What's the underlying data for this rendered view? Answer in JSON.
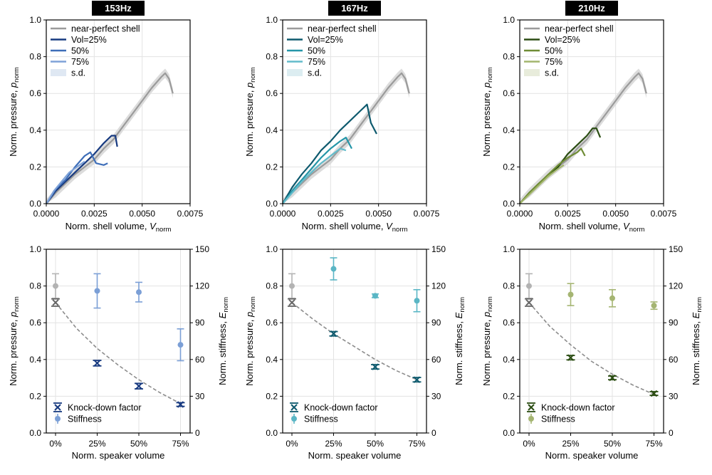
{
  "colors": {
    "grey_curve": "#9b9b9b",
    "grey_band": "#dcdcdc",
    "grid": "#e3e3e3",
    "fit_line": "#8c8c8c"
  },
  "labels": {
    "x_top": "Norm. shell volume, ",
    "x_top_sym": "V",
    "x_top_sub": "norm",
    "y_top": "Norm. pressure, ",
    "y_top_sym": "p",
    "y_top_sub": "norm",
    "x_bottom": "Norm. speaker volume",
    "y_right": "Norm. stiffness, ",
    "y_right_sym": "E",
    "y_right_sub": "norm"
  },
  "panels": [
    {
      "title": "153Hz",
      "colors": {
        "v25": "#173a80",
        "v50": "#3e6eb8",
        "v75": "#7ea2d8",
        "band": "#dfe8f3",
        "kd": "#173a80",
        "st": "#7b9fd6"
      },
      "legend_top": [
        "near-perfect shell",
        "Vol=25%",
        "50%",
        "75%",
        "s.d."
      ],
      "legend_bottom": [
        "Knock-down factor",
        "Stiffness"
      ]
    },
    {
      "title": "167Hz",
      "colors": {
        "v25": "#0e5a6e",
        "v50": "#2596a8",
        "v75": "#62bccb",
        "band": "#dcedf1",
        "kd": "#0e5a6e",
        "st": "#5ab6c5"
      },
      "legend_top": [
        "near-perfect shell",
        "Vol=25%",
        "50%",
        "75%",
        "s.d."
      ],
      "legend_bottom": [
        "Knock-down factor",
        "Stiffness"
      ]
    },
    {
      "title": "210Hz",
      "colors": {
        "v25": "#2b4d13",
        "v50": "#6f8c35",
        "v75": "#a3b66d",
        "band": "#e8ecdb",
        "kd": "#2b4d13",
        "st": "#a5b572"
      },
      "legend_top": [
        "near-perfect shell",
        "Vol=25%",
        "50%",
        "75%",
        "s.d."
      ],
      "legend_bottom": [
        "Knock-down factor",
        "Stiffness"
      ]
    }
  ],
  "chart_data": [
    {
      "type": "line",
      "title": "153Hz",
      "xlabel": "Norm. shell volume, V_norm",
      "ylabel": "Norm. pressure, p_norm",
      "xlim": [
        0,
        0.0075
      ],
      "ylim": [
        0,
        1.0
      ],
      "xticks": [
        "0.0000",
        "0.0025",
        "0.0050",
        "0.0075"
      ],
      "yticks": [
        "0.0",
        "0.2",
        "0.4",
        "0.6",
        "0.8",
        "1.0"
      ],
      "grid": true,
      "legend": "top-left",
      "series": [
        {
          "name": "near-perfect shell",
          "x": [
            0,
            0.0005,
            0.001,
            0.0015,
            0.002,
            0.0025,
            0.003,
            0.0035,
            0.004,
            0.0045,
            0.005,
            0.0055,
            0.006,
            0.0062,
            0.0064,
            0.0066
          ],
          "y": [
            0,
            0.06,
            0.11,
            0.16,
            0.2,
            0.24,
            0.3,
            0.35,
            0.42,
            0.49,
            0.56,
            0.63,
            0.69,
            0.71,
            0.68,
            0.6
          ]
        },
        {
          "name": "Vol=25%",
          "x": [
            0,
            0.0005,
            0.001,
            0.0015,
            0.002,
            0.0025,
            0.003,
            0.0034,
            0.0036,
            0.0037
          ],
          "y": [
            0,
            0.07,
            0.12,
            0.17,
            0.22,
            0.27,
            0.33,
            0.37,
            0.37,
            0.31
          ]
        },
        {
          "name": "50%",
          "x": [
            0,
            0.0005,
            0.001,
            0.0015,
            0.002,
            0.0023,
            0.0026,
            0.003,
            0.0032
          ],
          "y": [
            0,
            0.08,
            0.13,
            0.2,
            0.26,
            0.28,
            0.22,
            0.21,
            0.22
          ]
        },
        {
          "name": "75%",
          "x": [
            0,
            0.0004,
            0.0008,
            0.0012,
            0.0016,
            0.002
          ],
          "y": [
            0,
            0.07,
            0.12,
            0.17,
            0.2,
            0.23
          ]
        }
      ]
    },
    {
      "type": "line",
      "title": "167Hz",
      "xlabel": "Norm. shell volume, V_norm",
      "ylabel": "Norm. pressure, p_norm",
      "xlim": [
        0,
        0.0075
      ],
      "ylim": [
        0,
        1.0
      ],
      "xticks": [
        "0.0000",
        "0.0025",
        "0.0050",
        "0.0075"
      ],
      "yticks": [
        "0.0",
        "0.2",
        "0.4",
        "0.6",
        "0.8",
        "1.0"
      ],
      "grid": true,
      "legend": "top-left",
      "series": [
        {
          "name": "near-perfect shell",
          "x": [
            0,
            0.0005,
            0.001,
            0.0015,
            0.002,
            0.0025,
            0.003,
            0.0035,
            0.004,
            0.0045,
            0.005,
            0.0055,
            0.006,
            0.0062,
            0.0064,
            0.0066
          ],
          "y": [
            0,
            0.06,
            0.11,
            0.16,
            0.2,
            0.24,
            0.3,
            0.35,
            0.42,
            0.49,
            0.56,
            0.63,
            0.69,
            0.71,
            0.68,
            0.6
          ]
        },
        {
          "name": "Vol=25%",
          "x": [
            0,
            0.0005,
            0.001,
            0.0015,
            0.002,
            0.0025,
            0.003,
            0.0035,
            0.004,
            0.0044,
            0.0046,
            0.0049
          ],
          "y": [
            0,
            0.09,
            0.16,
            0.22,
            0.29,
            0.34,
            0.4,
            0.45,
            0.5,
            0.54,
            0.44,
            0.38
          ]
        },
        {
          "name": "50%",
          "x": [
            0,
            0.0005,
            0.001,
            0.0015,
            0.002,
            0.0025,
            0.003,
            0.0033,
            0.0036
          ],
          "y": [
            0,
            0.07,
            0.13,
            0.19,
            0.25,
            0.3,
            0.34,
            0.36,
            0.3
          ]
        },
        {
          "name": "75%",
          "x": [
            0,
            0.0005,
            0.001,
            0.0015,
            0.002,
            0.0025,
            0.003,
            0.0033
          ],
          "y": [
            0,
            0.06,
            0.12,
            0.17,
            0.22,
            0.26,
            0.3,
            0.29
          ]
        }
      ]
    },
    {
      "type": "line",
      "title": "210Hz",
      "xlabel": "Norm. shell volume, V_norm",
      "ylabel": "Norm. pressure, p_norm",
      "xlim": [
        0,
        0.0075
      ],
      "ylim": [
        0,
        1.0
      ],
      "xticks": [
        "0.0000",
        "0.0025",
        "0.0050",
        "0.0075"
      ],
      "yticks": [
        "0.0",
        "0.2",
        "0.4",
        "0.6",
        "0.8",
        "1.0"
      ],
      "grid": true,
      "legend": "top-left",
      "series": [
        {
          "name": "near-perfect shell",
          "x": [
            0,
            0.0005,
            0.001,
            0.0015,
            0.002,
            0.0025,
            0.003,
            0.0035,
            0.004,
            0.0045,
            0.005,
            0.0055,
            0.006,
            0.0062,
            0.0064,
            0.0066
          ],
          "y": [
            0,
            0.06,
            0.11,
            0.16,
            0.2,
            0.24,
            0.3,
            0.35,
            0.42,
            0.49,
            0.56,
            0.63,
            0.69,
            0.71,
            0.68,
            0.6
          ]
        },
        {
          "name": "Vol=25%",
          "x": [
            0,
            0.0005,
            0.001,
            0.0015,
            0.002,
            0.0025,
            0.003,
            0.0035,
            0.0038,
            0.004,
            0.0042
          ],
          "y": [
            0,
            0.06,
            0.11,
            0.15,
            0.2,
            0.27,
            0.32,
            0.37,
            0.41,
            0.41,
            0.36
          ]
        },
        {
          "name": "50%",
          "x": [
            0,
            0.0005,
            0.001,
            0.0015,
            0.002,
            0.0025,
            0.003,
            0.0032,
            0.0034
          ],
          "y": [
            0,
            0.06,
            0.11,
            0.16,
            0.21,
            0.25,
            0.28,
            0.3,
            0.26
          ]
        },
        {
          "name": "75%",
          "x": [
            0,
            0.0005,
            0.001,
            0.0015,
            0.002,
            0.0023
          ],
          "y": [
            0,
            0.05,
            0.1,
            0.15,
            0.19,
            0.21
          ]
        }
      ]
    },
    {
      "type": "scatter",
      "title": "153Hz",
      "xlabel": "Norm. speaker volume",
      "ylabel": "Norm. pressure, p_norm",
      "ylabel_right": "Norm. stiffness, E_norm",
      "categories": [
        "0%",
        "25%",
        "50%",
        "75%"
      ],
      "ylim": [
        0,
        1.0
      ],
      "ylim_right": [
        0,
        150
      ],
      "yticks": [
        "0.0",
        "0.2",
        "0.4",
        "0.6",
        "0.8",
        "1.0"
      ],
      "yticks_right": [
        "0",
        "30",
        "60",
        "90",
        "120",
        "150"
      ],
      "grid": true,
      "legend": "bottom-left",
      "series": [
        {
          "name": "Knock-down factor",
          "axis": "left",
          "values": [
            0.71,
            0.38,
            0.255,
            0.155
          ],
          "err": [
            0.02,
            0.015,
            0.015,
            0.01
          ]
        },
        {
          "name": "Stiffness",
          "axis": "right",
          "values": [
            120,
            116,
            115,
            72
          ],
          "err": [
            10,
            14,
            8,
            13
          ]
        }
      ],
      "fit": {
        "x": [
          0,
          0.5,
          1,
          1.5,
          2,
          2.5,
          3
        ],
        "y": [
          0.71,
          0.57,
          0.46,
          0.37,
          0.29,
          0.22,
          0.16
        ]
      }
    },
    {
      "type": "scatter",
      "title": "167Hz",
      "xlabel": "Norm. speaker volume",
      "ylabel": "Norm. pressure, p_norm",
      "ylabel_right": "Norm. stiffness, E_norm",
      "categories": [
        "0%",
        "25%",
        "50%",
        "75%"
      ],
      "ylim": [
        0,
        1.0
      ],
      "ylim_right": [
        0,
        150
      ],
      "yticks": [
        "0.0",
        "0.2",
        "0.4",
        "0.6",
        "0.8",
        "1.0"
      ],
      "yticks_right": [
        "0",
        "30",
        "60",
        "90",
        "120",
        "150"
      ],
      "grid": true,
      "legend": "bottom-left",
      "series": [
        {
          "name": "Knock-down factor",
          "axis": "left",
          "values": [
            0.71,
            0.54,
            0.36,
            0.29
          ],
          "err": [
            0.02,
            0.012,
            0.012,
            0.012
          ]
        },
        {
          "name": "Stiffness",
          "axis": "right",
          "values": [
            120,
            134,
            112,
            108
          ],
          "err": [
            10,
            9,
            1.5,
            9
          ]
        }
      ],
      "fit": {
        "x": [
          0,
          0.5,
          1,
          1.5,
          2,
          2.5,
          3
        ],
        "y": [
          0.71,
          0.62,
          0.54,
          0.47,
          0.4,
          0.34,
          0.29
        ]
      }
    },
    {
      "type": "scatter",
      "title": "210Hz",
      "xlabel": "Norm. speaker volume",
      "ylabel": "Norm. pressure, p_norm",
      "ylabel_right": "Norm. stiffness, E_norm",
      "categories": [
        "0%",
        "25%",
        "50%",
        "75%"
      ],
      "ylim": [
        0,
        1.0
      ],
      "ylim_right": [
        0,
        150
      ],
      "yticks": [
        "0.0",
        "0.2",
        "0.4",
        "0.6",
        "0.8",
        "1.0"
      ],
      "yticks_right": [
        "0",
        "30",
        "60",
        "90",
        "120",
        "150"
      ],
      "grid": true,
      "legend": "bottom-left",
      "series": [
        {
          "name": "Knock-down factor",
          "axis": "left",
          "values": [
            0.71,
            0.41,
            0.3,
            0.215
          ],
          "err": [
            0.02,
            0.012,
            0.01,
            0.01
          ]
        },
        {
          "name": "Stiffness",
          "axis": "right",
          "values": [
            120,
            113,
            110,
            104
          ],
          "err": [
            10,
            9,
            7,
            3
          ]
        }
      ],
      "fit": {
        "x": [
          0,
          0.5,
          1,
          1.5,
          2,
          2.5,
          3
        ],
        "y": [
          0.71,
          0.58,
          0.48,
          0.39,
          0.32,
          0.26,
          0.21
        ]
      }
    }
  ]
}
